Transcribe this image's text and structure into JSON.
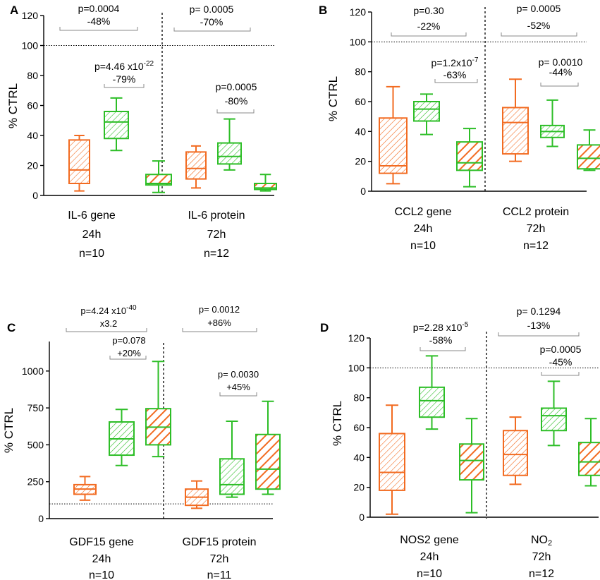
{
  "colors": {
    "orange": "#F26B21",
    "green": "#2DBE27"
  },
  "chart_data": [
    {
      "panel": "A",
      "type": "box",
      "ylabel": "% CTRL",
      "ylim": [
        0,
        120
      ],
      "yticks": [
        0,
        20,
        40,
        60,
        80,
        100,
        120
      ],
      "reference_line": 100,
      "groups": [
        {
          "line1": "IL-6 gene",
          "line2": "24h",
          "line3": "n=10"
        },
        {
          "line1": "IL-6 protein",
          "line2": "72h",
          "line3": "n=12"
        }
      ],
      "boxes": [
        {
          "group": 0,
          "style": "orange-thin",
          "min": 3,
          "q1": 8,
          "median": 17,
          "q3": 37,
          "max": 40
        },
        {
          "group": 0,
          "style": "green-thin",
          "min": 30,
          "q1": 38,
          "median": 49,
          "q3": 56,
          "max": 65
        },
        {
          "group": 0,
          "style": "orange-thick",
          "min": 2,
          "q1": 7,
          "median": 8,
          "q3": 14,
          "max": 23
        },
        {
          "group": 1,
          "style": "orange-thin",
          "min": 5,
          "q1": 11,
          "median": 18,
          "q3": 29,
          "max": 33
        },
        {
          "group": 1,
          "style": "green-thin",
          "min": 17,
          "q1": 21,
          "median": 26,
          "q3": 35,
          "max": 51
        },
        {
          "group": 1,
          "style": "orange-thick",
          "min": 3,
          "q1": 4,
          "median": 5,
          "q3": 8,
          "max": 14
        }
      ],
      "annotations": [
        {
          "p": "p=0.0004",
          "change": "-48%"
        },
        {
          "p": "p=4.46 x10",
          "exp": "-22",
          "change": "-79%"
        },
        {
          "p": "p= 0.0005",
          "change": "-70%"
        },
        {
          "p": "p=0.0005",
          "change": "-80%"
        }
      ]
    },
    {
      "panel": "B",
      "type": "box",
      "ylabel": "% CTRL",
      "ylim": [
        0,
        120
      ],
      "yticks": [
        0,
        20,
        40,
        60,
        80,
        100,
        120
      ],
      "reference_line": 100,
      "groups": [
        {
          "line1": "CCL2 gene",
          "line2": "24h",
          "line3": "n=10"
        },
        {
          "line1": "CCL2 protein",
          "line2": "72h",
          "line3": "n=12"
        }
      ],
      "boxes": [
        {
          "group": 0,
          "style": "orange-thin",
          "min": 5,
          "q1": 12,
          "median": 17,
          "q3": 49,
          "max": 70
        },
        {
          "group": 0,
          "style": "green-thin",
          "min": 38,
          "q1": 47,
          "median": 55,
          "q3": 60,
          "max": 65
        },
        {
          "group": 0,
          "style": "orange-thick",
          "min": 3,
          "q1": 14,
          "median": 19,
          "q3": 33,
          "max": 42
        },
        {
          "group": 1,
          "style": "orange-thin",
          "min": 20,
          "q1": 25,
          "median": 46,
          "q3": 56,
          "max": 75
        },
        {
          "group": 1,
          "style": "green-thin",
          "min": 30,
          "q1": 36,
          "median": 40,
          "q3": 44,
          "max": 61
        },
        {
          "group": 1,
          "style": "orange-thick",
          "min": 14,
          "q1": 15,
          "median": 22,
          "q3": 31,
          "max": 41
        }
      ],
      "annotations": [
        {
          "p": "p=0.30",
          "change": "-22%"
        },
        {
          "p": "p=1.2x10",
          "exp": "-7",
          "change": "-63%"
        },
        {
          "p": "p= 0.0005",
          "change": "-52%"
        },
        {
          "p": "p= 0.0010",
          "change": "-44%"
        }
      ]
    },
    {
      "panel": "C",
      "type": "box",
      "ylabel": "% CTRL",
      "ylim": [
        0,
        1200
      ],
      "yticks": [
        0,
        250,
        500,
        750,
        1000
      ],
      "reference_line": 100,
      "groups": [
        {
          "line1": "GDF15 gene",
          "line2": "24h",
          "line3": "n=10"
        },
        {
          "line1": "GDF15 protein",
          "line2": "72h",
          "line3": "n=11"
        }
      ],
      "boxes": [
        {
          "group": 0,
          "style": "orange-thin",
          "min": 125,
          "q1": 165,
          "median": 200,
          "q3": 230,
          "max": 285
        },
        {
          "group": 0,
          "style": "green-thin",
          "min": 360,
          "q1": 430,
          "median": 540,
          "q3": 655,
          "max": 740
        },
        {
          "group": 0,
          "style": "orange-thick",
          "min": 420,
          "q1": 500,
          "median": 620,
          "q3": 745,
          "max": 1065
        },
        {
          "group": 1,
          "style": "orange-thin",
          "min": 70,
          "q1": 90,
          "median": 145,
          "q3": 200,
          "max": 255
        },
        {
          "group": 1,
          "style": "green-thin",
          "min": 145,
          "q1": 165,
          "median": 230,
          "q3": 405,
          "max": 660
        },
        {
          "group": 1,
          "style": "orange-thick",
          "min": 165,
          "q1": 200,
          "median": 335,
          "q3": 570,
          "max": 795
        }
      ],
      "annotations": [
        {
          "p": "p=4.24 x10",
          "exp": "-40",
          "change": "x3.2"
        },
        {
          "p": "p=0.078",
          "change": "+20%"
        },
        {
          "p": "p= 0.0012",
          "change": "+86%"
        },
        {
          "p": "p= 0.0030",
          "change": "+45%"
        }
      ]
    },
    {
      "panel": "D",
      "type": "box",
      "ylabel": "% CTRL",
      "ylim": [
        0,
        120
      ],
      "yticks": [
        0,
        20,
        40,
        60,
        80,
        100,
        120
      ],
      "reference_line": 100,
      "groups": [
        {
          "line1": "NOS2 gene",
          "line2": "24h",
          "line3": "n=10"
        },
        {
          "line1": "NO",
          "sub": "2",
          "line2": "72h",
          "line3": "n=12"
        }
      ],
      "boxes": [
        {
          "group": 0,
          "style": "orange-thin",
          "min": 2,
          "q1": 18,
          "median": 30,
          "q3": 56,
          "max": 75
        },
        {
          "group": 0,
          "style": "green-thin",
          "min": 59,
          "q1": 67,
          "median": 78,
          "q3": 87,
          "max": 108
        },
        {
          "group": 0,
          "style": "orange-thick",
          "min": 3,
          "q1": 25,
          "median": 38,
          "q3": 49,
          "max": 66
        },
        {
          "group": 1,
          "style": "orange-thin",
          "min": 22,
          "q1": 28,
          "median": 42,
          "q3": 58,
          "max": 67
        },
        {
          "group": 1,
          "style": "green-thin",
          "min": 48,
          "q1": 58,
          "median": 68,
          "q3": 73,
          "max": 91
        },
        {
          "group": 1,
          "style": "orange-thick",
          "min": 21,
          "q1": 28,
          "median": 37,
          "q3": 50,
          "max": 66
        }
      ],
      "annotations": [
        {
          "p": "p=2.28 x10",
          "exp": "-5",
          "change": "-58%"
        },
        {
          "p": "p= 0.1294",
          "change": "-13%"
        },
        {
          "p": "p=0.0005",
          "change": "-45%"
        }
      ]
    }
  ]
}
